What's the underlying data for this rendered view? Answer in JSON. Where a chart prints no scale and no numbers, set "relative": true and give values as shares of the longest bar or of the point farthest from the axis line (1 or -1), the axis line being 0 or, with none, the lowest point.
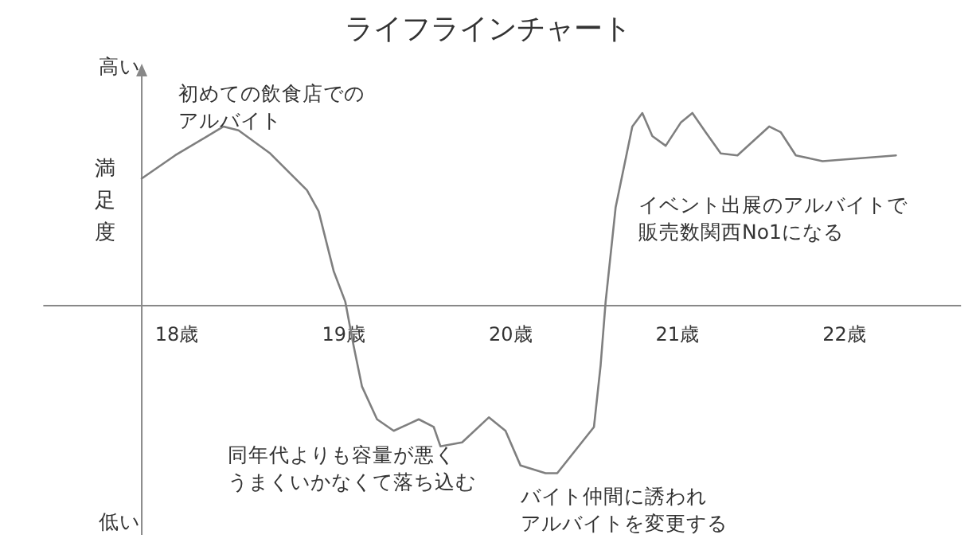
{
  "chart_data": {
    "type": "line",
    "title": "ライフラインチャート",
    "ylabel": "満足度",
    "relative": true,
    "annotations": [
      "高い",
      "低い",
      "初めての飲食店でのアルバイト",
      "同年代よりも容量が悪くうまくいかなくて落ち込む",
      "バイト仲間に誘われアルバイトを変更する",
      "イベント出展のアルバイトで販売数関西No1になる"
    ],
    "xlim": [
      17.2,
      22.7
    ],
    "ref_lines": [
      {
        "axis": "x",
        "value": 17.79,
        "color": "#888888"
      }
    ],
    "xticks": [
      {
        "value": 18,
        "label": "18歳"
      },
      {
        "value": 19,
        "label": "19歳"
      },
      {
        "value": 20,
        "label": "20歳"
      },
      {
        "value": 21,
        "label": "21歳"
      },
      {
        "value": 22,
        "label": "22歳"
      }
    ],
    "series": [
      {
        "color": "#7f7f7f",
        "x": [
          17.79,
          17.99,
          18.28,
          18.37,
          18.56,
          18.78,
          18.85,
          18.94,
          19.01,
          19.06,
          19.11,
          19.2,
          19.3,
          19.45,
          19.54,
          19.58,
          19.71,
          19.87,
          19.97,
          20.06,
          20.21,
          20.28,
          20.5,
          20.54,
          20.57,
          20.63,
          20.73,
          20.79,
          20.85,
          20.93,
          21.02,
          21.09,
          21.17,
          21.26,
          21.36,
          21.55,
          21.62,
          21.71,
          21.87,
          22.31
        ],
        "values": [
          0.66,
          0.78,
          0.93,
          0.91,
          0.79,
          0.6,
          0.49,
          0.18,
          0.02,
          -0.21,
          -0.42,
          -0.59,
          -0.65,
          -0.59,
          -0.63,
          -0.73,
          -0.71,
          -0.58,
          -0.65,
          -0.83,
          -0.87,
          -0.87,
          -0.63,
          -0.31,
          0.02,
          0.51,
          0.93,
          1.0,
          0.88,
          0.83,
          0.95,
          1.0,
          0.9,
          0.79,
          0.78,
          0.93,
          0.9,
          0.78,
          0.75,
          0.78
        ]
      }
    ]
  }
}
